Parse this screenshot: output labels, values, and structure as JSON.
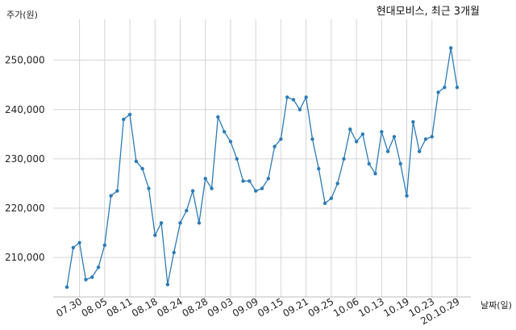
{
  "chart_data": {
    "type": "line",
    "title": "현대모비스, 최근 3개월",
    "ylabel": "주가(원)",
    "xlabel": "날짜(일)",
    "ylim": [
      202000,
      256000
    ],
    "yticks": [
      210000,
      220000,
      230000,
      240000,
      250000
    ],
    "ytick_labels": [
      "210,000",
      "220,000",
      "230,000",
      "240,000",
      "250,000"
    ],
    "xtick_labels": [
      "07.30",
      "08.05",
      "08.11",
      "08.18",
      "08.24",
      "08.28",
      "09.03",
      "09.09",
      "09.15",
      "09.21",
      "09.25",
      "10.06",
      "10.13",
      "10.19",
      "10.23",
      "20.10.29"
    ],
    "xtick_index": [
      2,
      6,
      10,
      14,
      18,
      22,
      26,
      30,
      34,
      38,
      42,
      46,
      50,
      54,
      58,
      62
    ],
    "grid": true,
    "line_color": "#2c7bb6",
    "series": [
      {
        "values": [
          204000,
          212000,
          213000,
          205500,
          206000,
          208000,
          212500,
          222500,
          223500,
          238000,
          239000,
          229500,
          228000,
          224000,
          214500,
          217000,
          204500,
          211000,
          217000,
          219500,
          223500,
          217000,
          226000,
          224000,
          238500,
          235500,
          233500,
          230000,
          225500,
          225500,
          223500,
          224000,
          226000,
          232500,
          234000,
          242500,
          242000,
          240000,
          242500,
          234000,
          228000,
          221000,
          222000,
          225000,
          230000,
          236000,
          233500,
          235000,
          229000,
          227000,
          235500,
          231500,
          234500,
          229000,
          222500,
          237500,
          231500,
          234000,
          234500,
          243500,
          244500,
          252500,
          244500
        ]
      }
    ]
  }
}
